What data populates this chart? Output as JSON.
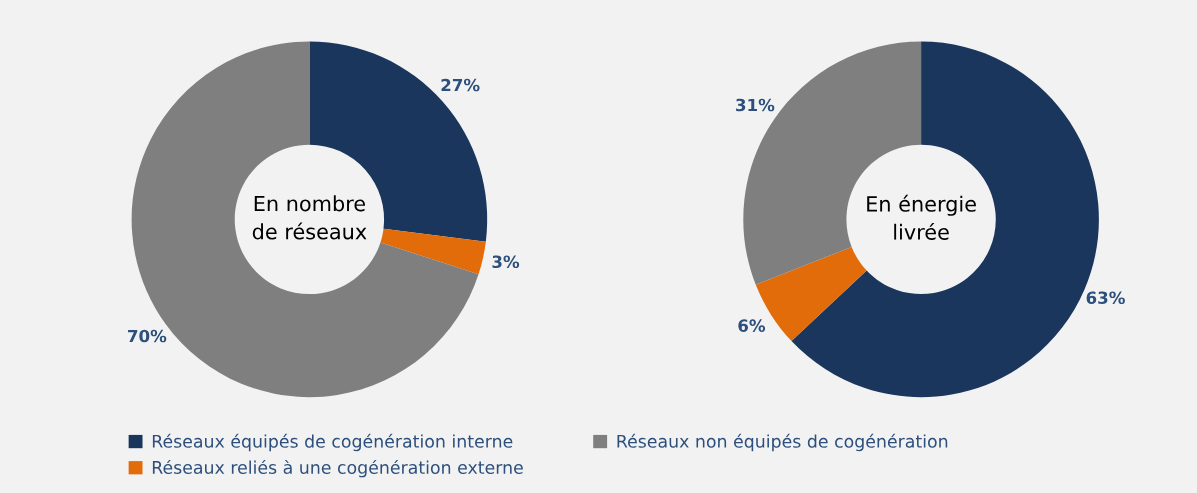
{
  "chart_data": [
    {
      "type": "donut",
      "title": "En nombre\nde réseaux",
      "categories": [
        "Réseaux équipés de cogénération interne",
        "Réseaux reliés à une cogénération externe",
        "Réseaux non équipés de cogénération"
      ],
      "values": [
        27,
        3,
        70
      ],
      "value_labels": [
        "27%",
        "3%",
        "70%"
      ],
      "colors": [
        "#1b365d",
        "#e36c0a",
        "#7f7f7f"
      ],
      "legend": "bottom"
    },
    {
      "type": "donut",
      "title": "En énergie\nlivrée",
      "categories": [
        null,
        null,
        null
      ],
      "values": [
        63,
        6,
        31
      ],
      "value_labels": [
        "63%",
        "6%",
        "31%"
      ],
      "colors": [
        "#1b365d",
        "#e36c0a",
        "#7f7f7f"
      ]
    }
  ]
}
